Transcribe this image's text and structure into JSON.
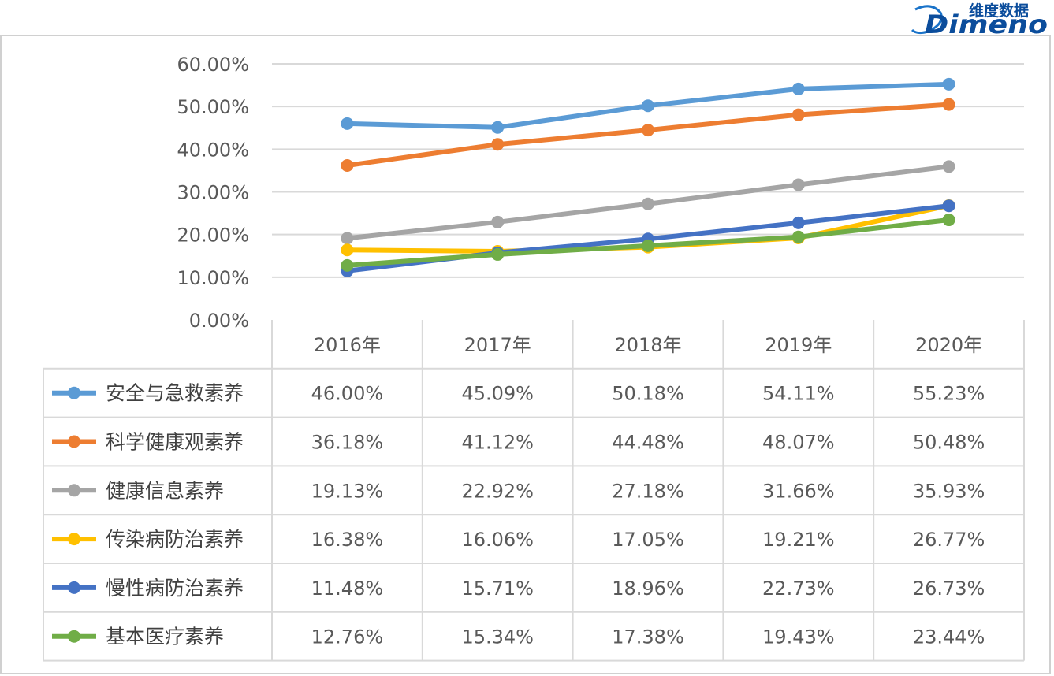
{
  "logo": {
    "cn": "维度数据",
    "en": "Dimeno"
  },
  "chart_data": {
    "type": "line",
    "categories": [
      "2016年",
      "2017年",
      "2018年",
      "2019年",
      "2020年"
    ],
    "ylim": [
      0,
      60
    ],
    "yticks": [
      "0.00%",
      "10.00%",
      "20.00%",
      "30.00%",
      "40.00%",
      "50.00%",
      "60.00%"
    ],
    "grid": true,
    "legend": "data-table",
    "series": [
      {
        "name": "安全与急救素养",
        "color": "#5B9BD5",
        "values": [
          46.0,
          45.09,
          50.18,
          54.11,
          55.23
        ],
        "labels": [
          "46.00%",
          "45.09%",
          "50.18%",
          "54.11%",
          "55.23%"
        ]
      },
      {
        "name": "科学健康观素养",
        "color": "#ED7D31",
        "values": [
          36.18,
          41.12,
          44.48,
          48.07,
          50.48
        ],
        "labels": [
          "36.18%",
          "41.12%",
          "44.48%",
          "48.07%",
          "50.48%"
        ]
      },
      {
        "name": "健康信息素养",
        "color": "#A5A5A5",
        "values": [
          19.13,
          22.92,
          27.18,
          31.66,
          35.93
        ],
        "labels": [
          "19.13%",
          "22.92%",
          "27.18%",
          "31.66%",
          "35.93%"
        ]
      },
      {
        "name": "传染病防治素养",
        "color": "#FFC000",
        "values": [
          16.38,
          16.06,
          17.05,
          19.21,
          26.77
        ],
        "labels": [
          "16.38%",
          "16.06%",
          "17.05%",
          "19.21%",
          "26.77%"
        ]
      },
      {
        "name": "慢性病防治素养",
        "color": "#4472C4",
        "values": [
          11.48,
          15.71,
          18.96,
          22.73,
          26.73
        ],
        "labels": [
          "11.48%",
          "15.71%",
          "18.96%",
          "22.73%",
          "26.73%"
        ]
      },
      {
        "name": "基本医疗素养",
        "color": "#70AD47",
        "values": [
          12.76,
          15.34,
          17.38,
          19.43,
          23.44
        ],
        "labels": [
          "12.76%",
          "15.34%",
          "17.38%",
          "19.43%",
          "23.44%"
        ]
      }
    ]
  }
}
